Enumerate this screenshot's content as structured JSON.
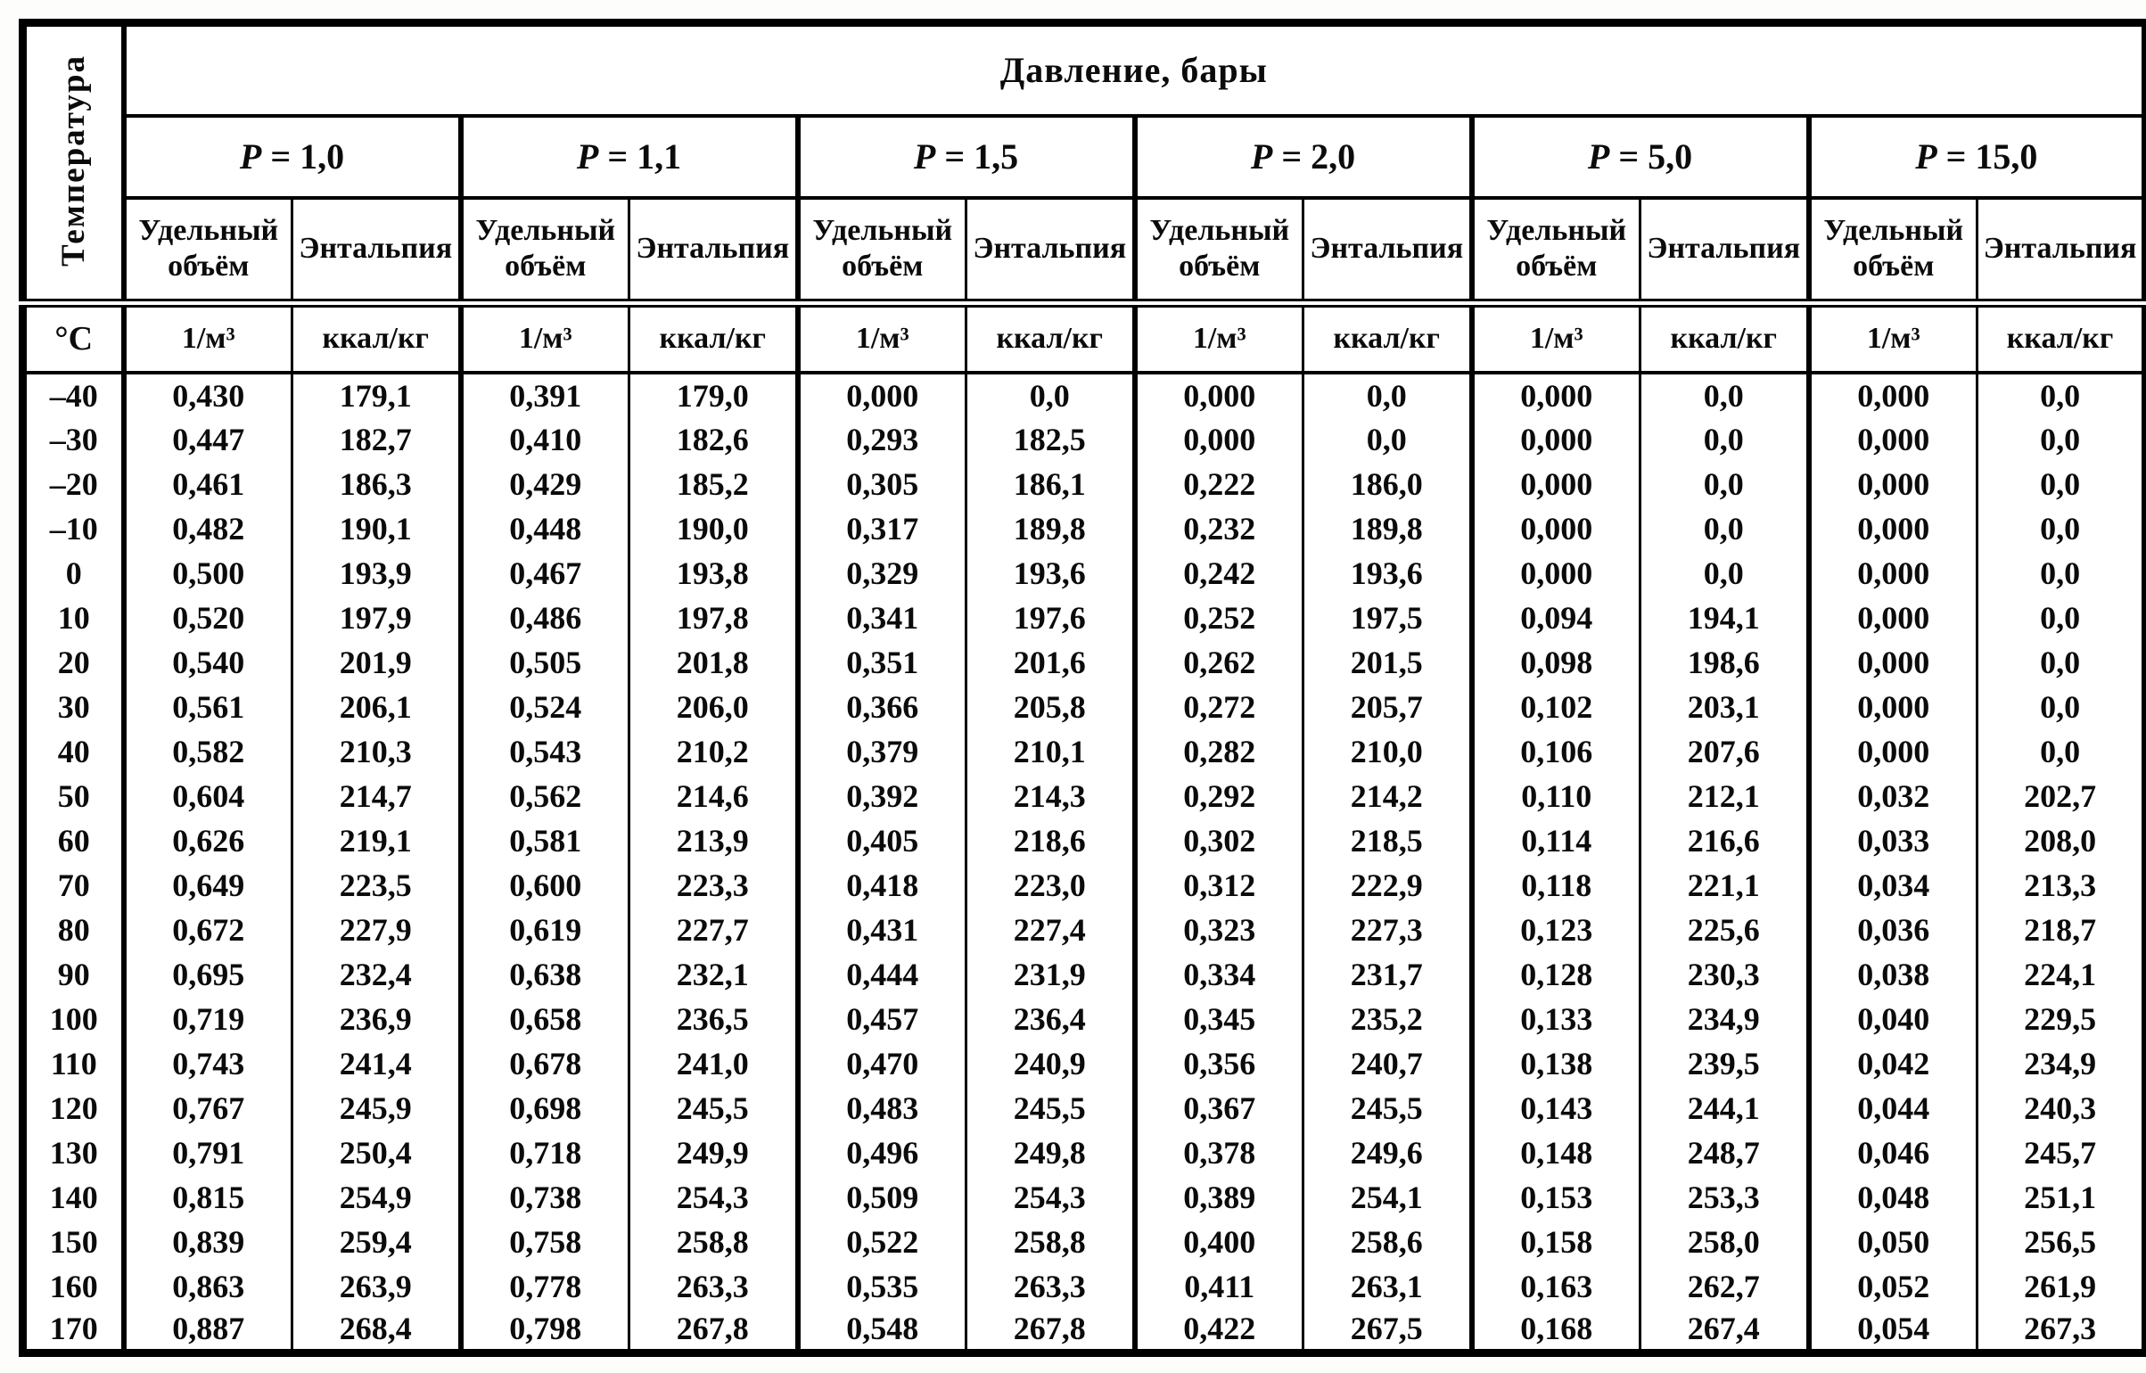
{
  "table": {
    "corner_header": "Температура",
    "pressure_title": "Давление, бары",
    "pressure_symbol": "P",
    "pressure_groups": [
      "= 1,0",
      "= 1,1",
      "= 1,5",
      "= 2,0",
      "= 5,0",
      "= 15,0"
    ],
    "subheaders": {
      "volume_line1": "Удельный",
      "volume_line2": "объём",
      "enthalpy": "Энтальпия"
    },
    "units": {
      "temperature": "°C",
      "volume": "1/м³",
      "enthalpy": "ккал/кг"
    },
    "rows": [
      {
        "t": "–40",
        "v": [
          "0,430",
          "179,1",
          "0,391",
          "179,0",
          "0,000",
          "0,0",
          "0,000",
          "0,0",
          "0,000",
          "0,0",
          "0,000",
          "0,0"
        ]
      },
      {
        "t": "–30",
        "v": [
          "0,447",
          "182,7",
          "0,410",
          "182,6",
          "0,293",
          "182,5",
          "0,000",
          "0,0",
          "0,000",
          "0,0",
          "0,000",
          "0,0"
        ]
      },
      {
        "t": "–20",
        "v": [
          "0,461",
          "186,3",
          "0,429",
          "185,2",
          "0,305",
          "186,1",
          "0,222",
          "186,0",
          "0,000",
          "0,0",
          "0,000",
          "0,0"
        ]
      },
      {
        "t": "–10",
        "v": [
          "0,482",
          "190,1",
          "0,448",
          "190,0",
          "0,317",
          "189,8",
          "0,232",
          "189,8",
          "0,000",
          "0,0",
          "0,000",
          "0,0"
        ]
      },
      {
        "t": "0",
        "v": [
          "0,500",
          "193,9",
          "0,467",
          "193,8",
          "0,329",
          "193,6",
          "0,242",
          "193,6",
          "0,000",
          "0,0",
          "0,000",
          "0,0"
        ]
      },
      {
        "t": "10",
        "v": [
          "0,520",
          "197,9",
          "0,486",
          "197,8",
          "0,341",
          "197,6",
          "0,252",
          "197,5",
          "0,094",
          "194,1",
          "0,000",
          "0,0"
        ]
      },
      {
        "t": "20",
        "v": [
          "0,540",
          "201,9",
          "0,505",
          "201,8",
          "0,351",
          "201,6",
          "0,262",
          "201,5",
          "0,098",
          "198,6",
          "0,000",
          "0,0"
        ]
      },
      {
        "t": "30",
        "v": [
          "0,561",
          "206,1",
          "0,524",
          "206,0",
          "0,366",
          "205,8",
          "0,272",
          "205,7",
          "0,102",
          "203,1",
          "0,000",
          "0,0"
        ]
      },
      {
        "t": "40",
        "v": [
          "0,582",
          "210,3",
          "0,543",
          "210,2",
          "0,379",
          "210,1",
          "0,282",
          "210,0",
          "0,106",
          "207,6",
          "0,000",
          "0,0"
        ]
      },
      {
        "t": "50",
        "v": [
          "0,604",
          "214,7",
          "0,562",
          "214,6",
          "0,392",
          "214,3",
          "0,292",
          "214,2",
          "0,110",
          "212,1",
          "0,032",
          "202,7"
        ]
      },
      {
        "t": "60",
        "v": [
          "0,626",
          "219,1",
          "0,581",
          "213,9",
          "0,405",
          "218,6",
          "0,302",
          "218,5",
          "0,114",
          "216,6",
          "0,033",
          "208,0"
        ]
      },
      {
        "t": "70",
        "v": [
          "0,649",
          "223,5",
          "0,600",
          "223,3",
          "0,418",
          "223,0",
          "0,312",
          "222,9",
          "0,118",
          "221,1",
          "0,034",
          "213,3"
        ]
      },
      {
        "t": "80",
        "v": [
          "0,672",
          "227,9",
          "0,619",
          "227,7",
          "0,431",
          "227,4",
          "0,323",
          "227,3",
          "0,123",
          "225,6",
          "0,036",
          "218,7"
        ]
      },
      {
        "t": "90",
        "v": [
          "0,695",
          "232,4",
          "0,638",
          "232,1",
          "0,444",
          "231,9",
          "0,334",
          "231,7",
          "0,128",
          "230,3",
          "0,038",
          "224,1"
        ]
      },
      {
        "t": "100",
        "v": [
          "0,719",
          "236,9",
          "0,658",
          "236,5",
          "0,457",
          "236,4",
          "0,345",
          "235,2",
          "0,133",
          "234,9",
          "0,040",
          "229,5"
        ]
      },
      {
        "t": "110",
        "v": [
          "0,743",
          "241,4",
          "0,678",
          "241,0",
          "0,470",
          "240,9",
          "0,356",
          "240,7",
          "0,138",
          "239,5",
          "0,042",
          "234,9"
        ]
      },
      {
        "t": "120",
        "v": [
          "0,767",
          "245,9",
          "0,698",
          "245,5",
          "0,483",
          "245,5",
          "0,367",
          "245,5",
          "0,143",
          "244,1",
          "0,044",
          "240,3"
        ]
      },
      {
        "t": "130",
        "v": [
          "0,791",
          "250,4",
          "0,718",
          "249,9",
          "0,496",
          "249,8",
          "0,378",
          "249,6",
          "0,148",
          "248,7",
          "0,046",
          "245,7"
        ]
      },
      {
        "t": "140",
        "v": [
          "0,815",
          "254,9",
          "0,738",
          "254,3",
          "0,509",
          "254,3",
          "0,389",
          "254,1",
          "0,153",
          "253,3",
          "0,048",
          "251,1"
        ]
      },
      {
        "t": "150",
        "v": [
          "0,839",
          "259,4",
          "0,758",
          "258,8",
          "0,522",
          "258,8",
          "0,400",
          "258,6",
          "0,158",
          "258,0",
          "0,050",
          "256,5"
        ]
      },
      {
        "t": "160",
        "v": [
          "0,863",
          "263,9",
          "0,778",
          "263,3",
          "0,535",
          "263,3",
          "0,411",
          "263,1",
          "0,163",
          "262,7",
          "0,052",
          "261,9"
        ]
      },
      {
        "t": "170",
        "v": [
          "0,887",
          "268,4",
          "0,798",
          "267,8",
          "0,548",
          "267,8",
          "0,422",
          "267,5",
          "0,168",
          "267,4",
          "0,054",
          "267,3"
        ]
      }
    ]
  }
}
